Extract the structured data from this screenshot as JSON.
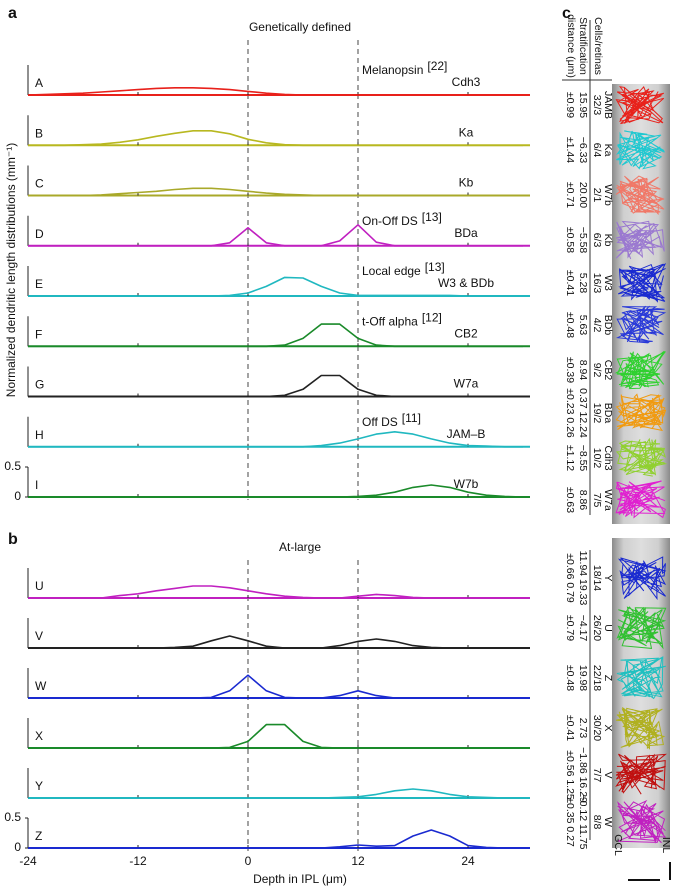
{
  "chart_data": [
    {
      "type": "line",
      "panel": "a",
      "title": "Genetically defined",
      "ylabel": "Normalized dendritic length distributions (mm⁻¹)",
      "x": [
        -24,
        -22,
        -20,
        -18,
        -16,
        -14,
        -12,
        -10,
        -8,
        -6,
        -4,
        -2,
        0,
        2,
        4,
        6,
        8,
        10,
        12,
        14,
        16,
        18,
        20,
        22,
        24,
        26,
        28,
        30
      ],
      "xlim": [
        -24,
        30
      ],
      "ylim": [
        0,
        0.5
      ],
      "yticks": [
        0,
        0.5
      ],
      "vlines": [
        0,
        12
      ],
      "series": [
        {
          "name": "A",
          "label": "Cdh3",
          "annotation": "Melanopsin",
          "ref": "[22]",
          "color": "#e8211b",
          "values": [
            0,
            0.01,
            0.02,
            0.03,
            0.05,
            0.07,
            0.09,
            0.11,
            0.12,
            0.12,
            0.11,
            0.09,
            0.06,
            0.03,
            0.01,
            0,
            0,
            0,
            0,
            0,
            0,
            0,
            0,
            0,
            0,
            0,
            0,
            0
          ]
        },
        {
          "name": "B",
          "label": "Ka",
          "color": "#b8b820",
          "values": [
            0,
            0,
            0,
            0.01,
            0.02,
            0.05,
            0.09,
            0.15,
            0.2,
            0.24,
            0.24,
            0.19,
            0.1,
            0.04,
            0.01,
            0,
            0,
            0,
            0,
            0,
            0,
            0,
            0,
            0,
            0,
            0,
            0,
            0
          ]
        },
        {
          "name": "C",
          "label": "Kb",
          "color": "#a9a92a",
          "values": [
            0,
            0,
            0,
            0,
            0.01,
            0.03,
            0.05,
            0.07,
            0.1,
            0.12,
            0.12,
            0.1,
            0.07,
            0.04,
            0.02,
            0.01,
            0,
            0,
            0,
            0,
            0,
            0,
            0,
            0,
            0,
            0,
            0,
            0
          ]
        },
        {
          "name": "D",
          "label": "BDa",
          "annotation": "On-Off DS",
          "ref": "[13]",
          "color": "#c020c0",
          "values": [
            0,
            0,
            0,
            0,
            0,
            0,
            0,
            0,
            0,
            0,
            0,
            0.05,
            0.3,
            0.05,
            0,
            0,
            0,
            0.08,
            0.35,
            0.06,
            0,
            0,
            0,
            0,
            0,
            0,
            0,
            0
          ]
        },
        {
          "name": "E",
          "label": "W3 & BDb",
          "annotation": "Local edge",
          "ref": "[13]",
          "color": "#20b8c0",
          "values": [
            0,
            0,
            0,
            0,
            0,
            0,
            0,
            0,
            0,
            0,
            0,
            0.01,
            0.05,
            0.16,
            0.31,
            0.3,
            0.16,
            0.05,
            0.01,
            0.01,
            0.01,
            0.01,
            0.01,
            0.01,
            0,
            0,
            0,
            0
          ]
        },
        {
          "name": "F",
          "label": "CB2",
          "annotation": "t-Off alpha",
          "ref": "[12]",
          "color": "#1a8a2a",
          "values": [
            0,
            0,
            0,
            0,
            0,
            0,
            0,
            0,
            0,
            0,
            0,
            0,
            0,
            0,
            0.02,
            0.13,
            0.37,
            0.37,
            0.13,
            0.02,
            0,
            0,
            0,
            0,
            0,
            0,
            0,
            0
          ]
        },
        {
          "name": "G",
          "label": "W7a",
          "color": "#222222",
          "values": [
            0,
            0,
            0,
            0,
            0,
            0,
            0,
            0,
            0,
            0,
            0,
            0,
            0,
            0,
            0.02,
            0.12,
            0.35,
            0.35,
            0.12,
            0.02,
            0,
            0,
            0,
            0,
            0,
            0,
            0,
            0
          ]
        },
        {
          "name": "H",
          "label": "JAM–B",
          "annotation": "Off DS",
          "ref": "[11]",
          "color": "#20b8c0",
          "values": [
            0,
            0,
            0,
            0,
            0,
            0,
            0,
            0,
            0,
            0,
            0,
            0,
            0,
            0,
            0,
            0,
            0.02,
            0.06,
            0.13,
            0.21,
            0.25,
            0.21,
            0.13,
            0.06,
            0.02,
            0.01,
            0,
            0
          ]
        },
        {
          "name": "I",
          "label": "W7b",
          "color": "#1a8a2a",
          "values": [
            0,
            0,
            0,
            0,
            0,
            0,
            0,
            0,
            0,
            0,
            0,
            0,
            0,
            0,
            0,
            0,
            0,
            0,
            0.01,
            0.03,
            0.08,
            0.16,
            0.2,
            0.16,
            0.08,
            0.03,
            0.01,
            0
          ]
        }
      ]
    },
    {
      "type": "line",
      "panel": "b",
      "title": "At-large",
      "xlabel": "Depth in IPL (μm)",
      "x": [
        -24,
        -22,
        -20,
        -18,
        -16,
        -14,
        -12,
        -10,
        -8,
        -6,
        -4,
        -2,
        0,
        2,
        4,
        6,
        8,
        10,
        12,
        14,
        16,
        18,
        20,
        22,
        24,
        26,
        28,
        30
      ],
      "xlim": [
        -24,
        30
      ],
      "ylim": [
        0,
        0.5
      ],
      "yticks": [
        0,
        0.5
      ],
      "xticks": [
        -24,
        -12,
        0,
        12,
        24
      ],
      "vlines": [
        0,
        12
      ],
      "series": [
        {
          "name": "U",
          "color": "#c020c0",
          "values": [
            0,
            0,
            0,
            0,
            0,
            0.04,
            0.07,
            0.12,
            0.16,
            0.2,
            0.2,
            0.17,
            0.12,
            0.07,
            0.03,
            0.01,
            0,
            0,
            0.03,
            0.06,
            0.04,
            0.01,
            0,
            0,
            0,
            0,
            0,
            0
          ]
        },
        {
          "name": "V",
          "color": "#222222",
          "values": [
            0,
            0,
            0,
            0,
            0,
            0,
            0,
            0,
            0.01,
            0.03,
            0.12,
            0.2,
            0.12,
            0.03,
            0,
            0,
            0,
            0.04,
            0.11,
            0.15,
            0.11,
            0.04,
            0.01,
            0,
            0,
            0,
            0,
            0
          ]
        },
        {
          "name": "W",
          "color": "#1a2ad0",
          "values": [
            0,
            0,
            0,
            0,
            0,
            0,
            0,
            0,
            0,
            0,
            0.01,
            0.12,
            0.38,
            0.12,
            0.01,
            0,
            0,
            0.04,
            0.12,
            0.04,
            0,
            0,
            0,
            0,
            0,
            0,
            0,
            0
          ]
        },
        {
          "name": "X",
          "color": "#1a8a2a",
          "values": [
            0,
            0,
            0,
            0,
            0,
            0,
            0,
            0,
            0,
            0,
            0,
            0.01,
            0.11,
            0.39,
            0.39,
            0.11,
            0.01,
            0,
            0,
            0,
            0,
            0,
            0,
            0,
            0,
            0,
            0,
            0
          ]
        },
        {
          "name": "Y",
          "color": "#20b8c0",
          "values": [
            0,
            0,
            0,
            0,
            0,
            0,
            0,
            0,
            0,
            0,
            0,
            0,
            0,
            0,
            0,
            0,
            0,
            0.01,
            0.02,
            0.06,
            0.12,
            0.15,
            0.12,
            0.06,
            0.02,
            0.01,
            0,
            0
          ]
        },
        {
          "name": "Z",
          "color": "#1a2ad0",
          "values": [
            0,
            0,
            0,
            0,
            0,
            0,
            0,
            0,
            0,
            0,
            0,
            0,
            0,
            0,
            0,
            0,
            0,
            0.02,
            0.05,
            0.03,
            0.04,
            0.2,
            0.3,
            0.2,
            0.04,
            0.01,
            0,
            0
          ]
        }
      ]
    }
  ],
  "panel_c": {
    "label": "c",
    "headers": [
      "Cells/retinas",
      "Stratification",
      "distance (μm)"
    ],
    "top": [
      {
        "name": "JAMB",
        "color": "#e8211b",
        "count": "32/3",
        "dist": "15.95",
        "sd": "±0.99"
      },
      {
        "name": "Ka",
        "color": "#20c8d0",
        "count": "6/4",
        "dist": "−6.33",
        "sd": "±1.44"
      },
      {
        "name": "W7b",
        "color": "#f07868",
        "count": "2/1",
        "dist": "20.00",
        "sd": "±0.71"
      },
      {
        "name": "Kb",
        "color": "#9a78d0",
        "count": "6/3",
        "dist": "−5.58",
        "sd": "±0.58"
      },
      {
        "name": "W3",
        "color": "#1a2ad0",
        "count": "16/3",
        "dist": "5.28",
        "sd": "±0.41"
      },
      {
        "name": "BDb",
        "color": "#2a3ad8",
        "count": "4/2",
        "dist": "5.63",
        "sd": "±0.48"
      },
      {
        "name": "CB2",
        "color": "#30d030",
        "count": "9/2",
        "dist": "8.94",
        "sd": "±0.39"
      },
      {
        "name": "BDa",
        "color": "#f09a10",
        "count": "19/2",
        "dist": "0.37 12.24",
        "sd": "±0.23 0.26"
      },
      {
        "name": "Cdh3",
        "color": "#90d030",
        "count": "10/2",
        "dist": "−8.55",
        "sd": "±1.12"
      },
      {
        "name": "W7a",
        "color": "#e020d0",
        "count": "7/5",
        "dist": "8.86",
        "sd": "±0.63"
      }
    ],
    "bottom": [
      {
        "name": "Y",
        "color": "#1a2ad0",
        "count": "18/14",
        "dist": "11.94 19.33",
        "sd": "±0.66 0.79"
      },
      {
        "name": "U",
        "color": "#30c030",
        "count": "26/20",
        "dist": "−4.17",
        "sd": "±0.79"
      },
      {
        "name": "Z",
        "color": "#20c0c0",
        "count": "22/18",
        "dist": "19.98",
        "sd": "±0.48"
      },
      {
        "name": "X",
        "color": "#b0b020",
        "count": "30/20",
        "dist": "2.73",
        "sd": "±0.41"
      },
      {
        "name": "V",
        "color": "#c01010",
        "count": "7/7",
        "dist": "−1.86 16.29",
        "sd": "±0.56 1.25"
      },
      {
        "name": "W",
        "color": "#c020c0",
        "count": "8/8",
        "dist": "−0.12 11.75",
        "sd": "±0.35 0.27"
      }
    ],
    "layers": [
      "INL",
      "GCL"
    ]
  }
}
